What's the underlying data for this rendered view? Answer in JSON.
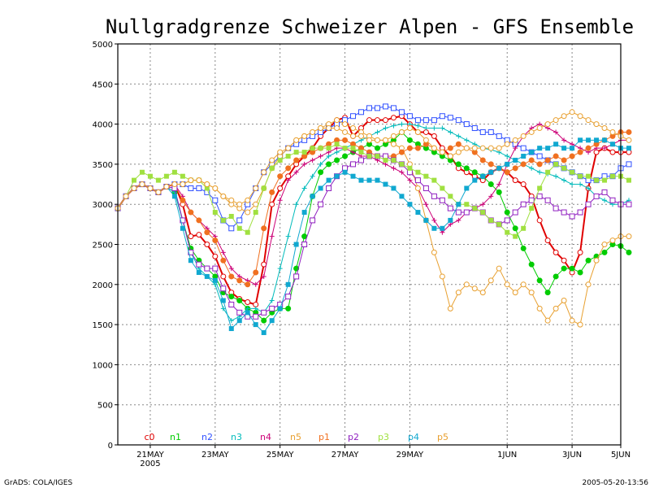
{
  "chart_data": {
    "type": "line",
    "title": "Nullgradgrenze Schweizer Alpen - GFS Ensemble",
    "xlabel": "",
    "ylabel": "",
    "ylim": [
      0,
      5000
    ],
    "yticks": [
      0,
      500,
      1000,
      1500,
      2000,
      2500,
      3000,
      3500,
      4000,
      4500,
      5000
    ],
    "xlim": [
      0,
      62
    ],
    "xticks": [
      {
        "x": 4,
        "label": "21MAY",
        "sublabel": "2005"
      },
      {
        "x": 12,
        "label": "23MAY",
        "sublabel": ""
      },
      {
        "x": 20,
        "label": "25MAY",
        "sublabel": ""
      },
      {
        "x": 28,
        "label": "27MAY",
        "sublabel": ""
      },
      {
        "x": 36,
        "label": "29MAY",
        "sublabel": ""
      },
      {
        "x": 48,
        "label": "1JUN",
        "sublabel": ""
      },
      {
        "x": 56,
        "label": "3JUN",
        "sublabel": ""
      },
      {
        "x": 64,
        "label": "5JUN",
        "sublabel": ""
      }
    ],
    "grid": true,
    "series": [
      {
        "name": "c0",
        "color": "#e00000",
        "marker": "circle-open",
        "width": 2,
        "values": [
          2950,
          3100,
          3200,
          3250,
          3200,
          3150,
          3220,
          3250,
          3000,
          2600,
          2620,
          2500,
          2350,
          2100,
          1900,
          1820,
          1780,
          1750,
          2250,
          3000,
          3200,
          3350,
          3500,
          3600,
          3700,
          3850,
          3950,
          4050,
          4080,
          3850,
          3950,
          4050,
          4050,
          4050,
          4080,
          4100,
          4000,
          3900,
          3900,
          3850,
          3700,
          3600,
          3450,
          3400,
          3350,
          3300,
          3400,
          3450,
          3400,
          3300,
          3250,
          3100,
          2800,
          2550,
          2400,
          2300,
          2150,
          2400,
          3200,
          3650,
          3700,
          3650,
          3650,
          3650
        ]
      },
      {
        "name": "n1",
        "color": "#00cc00",
        "marker": "circle-filled",
        "width": 1,
        "values": [
          2950,
          3100,
          3200,
          3250,
          3200,
          3150,
          3220,
          3150,
          2800,
          2450,
          2300,
          2200,
          2100,
          1900,
          1850,
          1800,
          1700,
          1650,
          1550,
          1650,
          1700,
          1700,
          2200,
          2600,
          3100,
          3400,
          3500,
          3550,
          3600,
          3650,
          3700,
          3750,
          3700,
          3750,
          3800,
          3900,
          3800,
          3750,
          3700,
          3650,
          3600,
          3550,
          3500,
          3450,
          3400,
          3350,
          3250,
          3150,
          2900,
          2700,
          2450,
          2250,
          2050,
          1900,
          2100,
          2200,
          2200,
          2150,
          2300,
          2350,
          2400,
          2500,
          2480,
          2400
        ]
      },
      {
        "name": "n2",
        "color": "#3050ff",
        "marker": "square-open",
        "width": 1,
        "values": [
          2950,
          3100,
          3200,
          3250,
          3200,
          3150,
          3220,
          3250,
          3250,
          3200,
          3200,
          3150,
          3050,
          2800,
          2700,
          2800,
          3000,
          3200,
          3400,
          3500,
          3600,
          3700,
          3750,
          3800,
          3850,
          3900,
          3950,
          4000,
          4050,
          4100,
          4150,
          4200,
          4200,
          4220,
          4200,
          4150,
          4100,
          4050,
          4050,
          4050,
          4100,
          4080,
          4050,
          4000,
          3950,
          3900,
          3900,
          3850,
          3800,
          3750,
          3700,
          3650,
          3600,
          3550,
          3500,
          3450,
          3400,
          3350,
          3300,
          3300,
          3350,
          3350,
          3450,
          3500
        ]
      },
      {
        "name": "n3",
        "color": "#00bbbb",
        "marker": "plus",
        "width": 1,
        "values": [
          2950,
          3100,
          3200,
          3250,
          3200,
          3150,
          3220,
          3150,
          2800,
          2400,
          2200,
          2100,
          2000,
          1700,
          1550,
          1600,
          1700,
          1700,
          1650,
          1800,
          2200,
          2600,
          3000,
          3200,
          3350,
          3500,
          3600,
          3650,
          3700,
          3750,
          3800,
          3850,
          3900,
          3950,
          3980,
          4000,
          4000,
          3980,
          3950,
          3950,
          3950,
          3900,
          3850,
          3800,
          3750,
          3700,
          3680,
          3650,
          3600,
          3550,
          3500,
          3450,
          3400,
          3380,
          3350,
          3300,
          3250,
          3250,
          3200,
          3100,
          3050,
          3000,
          3000,
          3050
        ]
      },
      {
        "name": "n4",
        "color": "#cc0077",
        "marker": "plus",
        "width": 1,
        "values": [
          2950,
          3100,
          3200,
          3250,
          3200,
          3150,
          3220,
          3250,
          3100,
          2900,
          2800,
          2700,
          2600,
          2400,
          2200,
          2100,
          2050,
          2000,
          2100,
          2600,
          3050,
          3300,
          3400,
          3500,
          3550,
          3600,
          3650,
          3700,
          3700,
          3650,
          3600,
          3600,
          3550,
          3500,
          3450,
          3400,
          3300,
          3200,
          3000,
          2800,
          2650,
          2750,
          2800,
          2900,
          2950,
          3000,
          3100,
          3250,
          3500,
          3700,
          3850,
          3950,
          4000,
          3950,
          3900,
          3800,
          3750,
          3700,
          3650,
          3700,
          3700,
          3750,
          3800,
          3800
        ]
      },
      {
        "name": "n5",
        "color": "#e8a030",
        "marker": "circle-open",
        "width": 1,
        "values": [
          2950,
          3100,
          3200,
          3250,
          3200,
          3150,
          3220,
          3250,
          3250,
          3300,
          3300,
          3250,
          3200,
          3100,
          3000,
          2950,
          2900,
          3000,
          3200,
          3450,
          3600,
          3700,
          3800,
          3850,
          3900,
          3950,
          4000,
          4050,
          4000,
          3950,
          3900,
          3850,
          3800,
          3800,
          3750,
          3700,
          3500,
          3200,
          2800,
          2400,
          2100,
          1700,
          1900,
          2000,
          1950,
          1900,
          2050,
          2200,
          2000,
          1900,
          2000,
          1900,
          1700,
          1550,
          1700,
          1800,
          1550,
          1500,
          2000,
          2300,
          2500,
          2550,
          2600,
          2600
        ]
      },
      {
        "name": "p1",
        "color": "#f07020",
        "marker": "circle-filled",
        "width": 1,
        "values": [
          2950,
          3100,
          3200,
          3250,
          3200,
          3150,
          3220,
          3250,
          3050,
          2900,
          2800,
          2650,
          2550,
          2300,
          2100,
          2050,
          2000,
          2150,
          2700,
          3150,
          3350,
          3450,
          3550,
          3600,
          3650,
          3700,
          3750,
          3800,
          3800,
          3750,
          3700,
          3650,
          3600,
          3600,
          3600,
          3650,
          3700,
          3700,
          3750,
          3700,
          3650,
          3700,
          3750,
          3700,
          3650,
          3550,
          3500,
          3450,
          3400,
          3450,
          3500,
          3550,
          3500,
          3550,
          3600,
          3550,
          3600,
          3650,
          3700,
          3750,
          3800,
          3850,
          3900,
          3900
        ]
      },
      {
        "name": "p2",
        "color": "#9020c0",
        "marker": "square-open",
        "width": 1,
        "values": [
          2950,
          3100,
          3200,
          3250,
          3200,
          3150,
          3220,
          3200,
          2800,
          2400,
          2250,
          2200,
          2200,
          1950,
          1750,
          1650,
          1600,
          1600,
          1650,
          1700,
          1750,
          1850,
          2100,
          2500,
          2800,
          3000,
          3200,
          3350,
          3450,
          3500,
          3550,
          3600,
          3600,
          3600,
          3550,
          3500,
          3400,
          3300,
          3200,
          3100,
          3050,
          2950,
          2900,
          2900,
          2950,
          2900,
          2800,
          2750,
          2800,
          2900,
          3000,
          3050,
          3100,
          3050,
          2950,
          2900,
          2850,
          2900,
          3000,
          3100,
          3150,
          3050,
          3000,
          3000
        ]
      },
      {
        "name": "p3",
        "color": "#a0e040",
        "marker": "square-filled",
        "width": 1,
        "values": [
          2950,
          3100,
          3300,
          3400,
          3350,
          3300,
          3350,
          3400,
          3350,
          3300,
          3300,
          3200,
          2900,
          2800,
          2850,
          2700,
          2650,
          2900,
          3200,
          3450,
          3550,
          3600,
          3650,
          3650,
          3700,
          3700,
          3700,
          3750,
          3700,
          3700,
          3650,
          3600,
          3600,
          3550,
          3550,
          3500,
          3450,
          3400,
          3350,
          3300,
          3200,
          3100,
          3000,
          3000,
          2950,
          2900,
          2800,
          2750,
          2650,
          2600,
          2700,
          2950,
          3200,
          3400,
          3500,
          3450,
          3400,
          3350,
          3350,
          3300,
          3300,
          3350,
          3350,
          3300
        ]
      },
      {
        "name": "p4",
        "color": "#10a8d0",
        "marker": "square-filled",
        "width": 1,
        "values": [
          2950,
          3100,
          3200,
          3250,
          3200,
          3150,
          3220,
          3100,
          2700,
          2300,
          2150,
          2100,
          2050,
          1800,
          1450,
          1550,
          1650,
          1500,
          1400,
          1550,
          1700,
          2000,
          2500,
          2900,
          3100,
          3200,
          3300,
          3350,
          3400,
          3350,
          3300,
          3300,
          3300,
          3250,
          3200,
          3100,
          3000,
          2900,
          2800,
          2700,
          2700,
          2800,
          3000,
          3200,
          3300,
          3350,
          3400,
          3450,
          3500,
          3550,
          3600,
          3650,
          3700,
          3700,
          3750,
          3700,
          3700,
          3800,
          3800,
          3800,
          3800,
          3750,
          3700,
          3700
        ]
      },
      {
        "name": "p5",
        "color": "#e8a030",
        "marker": "circle-open",
        "width": 1,
        "values": [
          2950,
          3100,
          3200,
          3250,
          3200,
          3150,
          3220,
          3250,
          3250,
          3300,
          3300,
          3250,
          3200,
          3100,
          3050,
          3000,
          3050,
          3200,
          3400,
          3550,
          3650,
          3700,
          3800,
          3850,
          3900,
          3950,
          3950,
          3950,
          3900,
          3850,
          3850,
          3800,
          3800,
          3800,
          3850,
          3900,
          3950,
          3900,
          3800,
          3700,
          3650,
          3600,
          3650,
          3700,
          3700,
          3700,
          3700,
          3700,
          3750,
          3800,
          3850,
          3900,
          3950,
          4000,
          4050,
          4100,
          4150,
          4100,
          4050,
          4000,
          3950,
          3900,
          3850,
          3800
        ]
      }
    ],
    "footer_left": "GrADS: COLA/IGES",
    "footer_right": "2005-05-20-13:56"
  }
}
